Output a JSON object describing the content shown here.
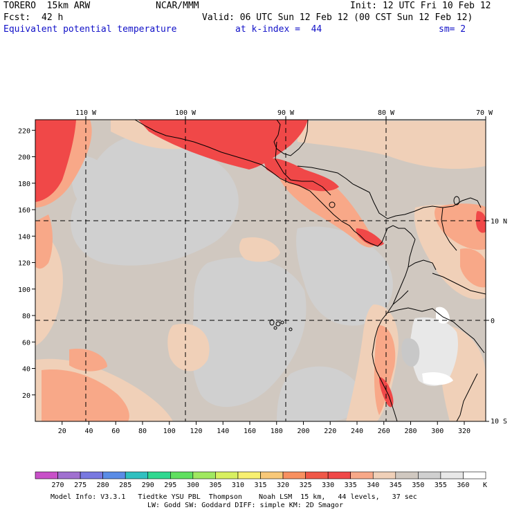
{
  "header": {
    "model": "TORERO  15km ARW",
    "org": "NCAR/MMM",
    "init": "Init: 12 UTC Fri 10 Feb 12",
    "fcst_label": "Fcst:",
    "fcst_value": "42 h",
    "valid": "Valid: 06 UTC Sun 12 Feb 12 (00 CST Sun 12 Feb 12)",
    "field": "Equivalent potential temperature",
    "level": "at k-index =  44",
    "smooth": "sm= 2"
  },
  "map": {
    "top_lon_labels": [
      "110 W",
      "100 W",
      "90 W",
      "80 W",
      "70 W"
    ],
    "right_lat_labels": [
      "10 N",
      "0",
      "10 S"
    ],
    "y_grid_labels": [
      "220",
      "200",
      "180",
      "160",
      "140",
      "120",
      "100",
      "80",
      "60",
      "40",
      "20"
    ],
    "x_grid_labels": [
      "20",
      "40",
      "60",
      "80",
      "100",
      "120",
      "140",
      "160",
      "180",
      "200",
      "220",
      "240",
      "260",
      "280",
      "300",
      "320"
    ]
  },
  "colorbar": {
    "labels": [
      "270",
      "275",
      "280",
      "285",
      "290",
      "295",
      "300",
      "305",
      "310",
      "315",
      "320",
      "325",
      "330",
      "335",
      "340",
      "345",
      "350",
      "355",
      "360"
    ],
    "unit": "K",
    "colors": [
      "#c850c8",
      "#a070d0",
      "#7878e0",
      "#5a8ce6",
      "#30c0c0",
      "#30d890",
      "#60e060",
      "#a0e860",
      "#d8f060",
      "#f8f070",
      "#f8c878",
      "#f89060",
      "#f05848",
      "#f04848",
      "#f8a888",
      "#f0d0b8",
      "#d0c8c0",
      "#d0d0d0",
      "#e8e8e8",
      "#ffffff"
    ]
  },
  "footer": {
    "line1": "Model Info: V3.3.1   Tiedtke YSU PBL  Thompson    Noah LSM  15 km,   44 levels,   37 sec",
    "line2": "LW: Godd SW: Goddard DIFF: simple KM: 2D Smagor"
  }
}
